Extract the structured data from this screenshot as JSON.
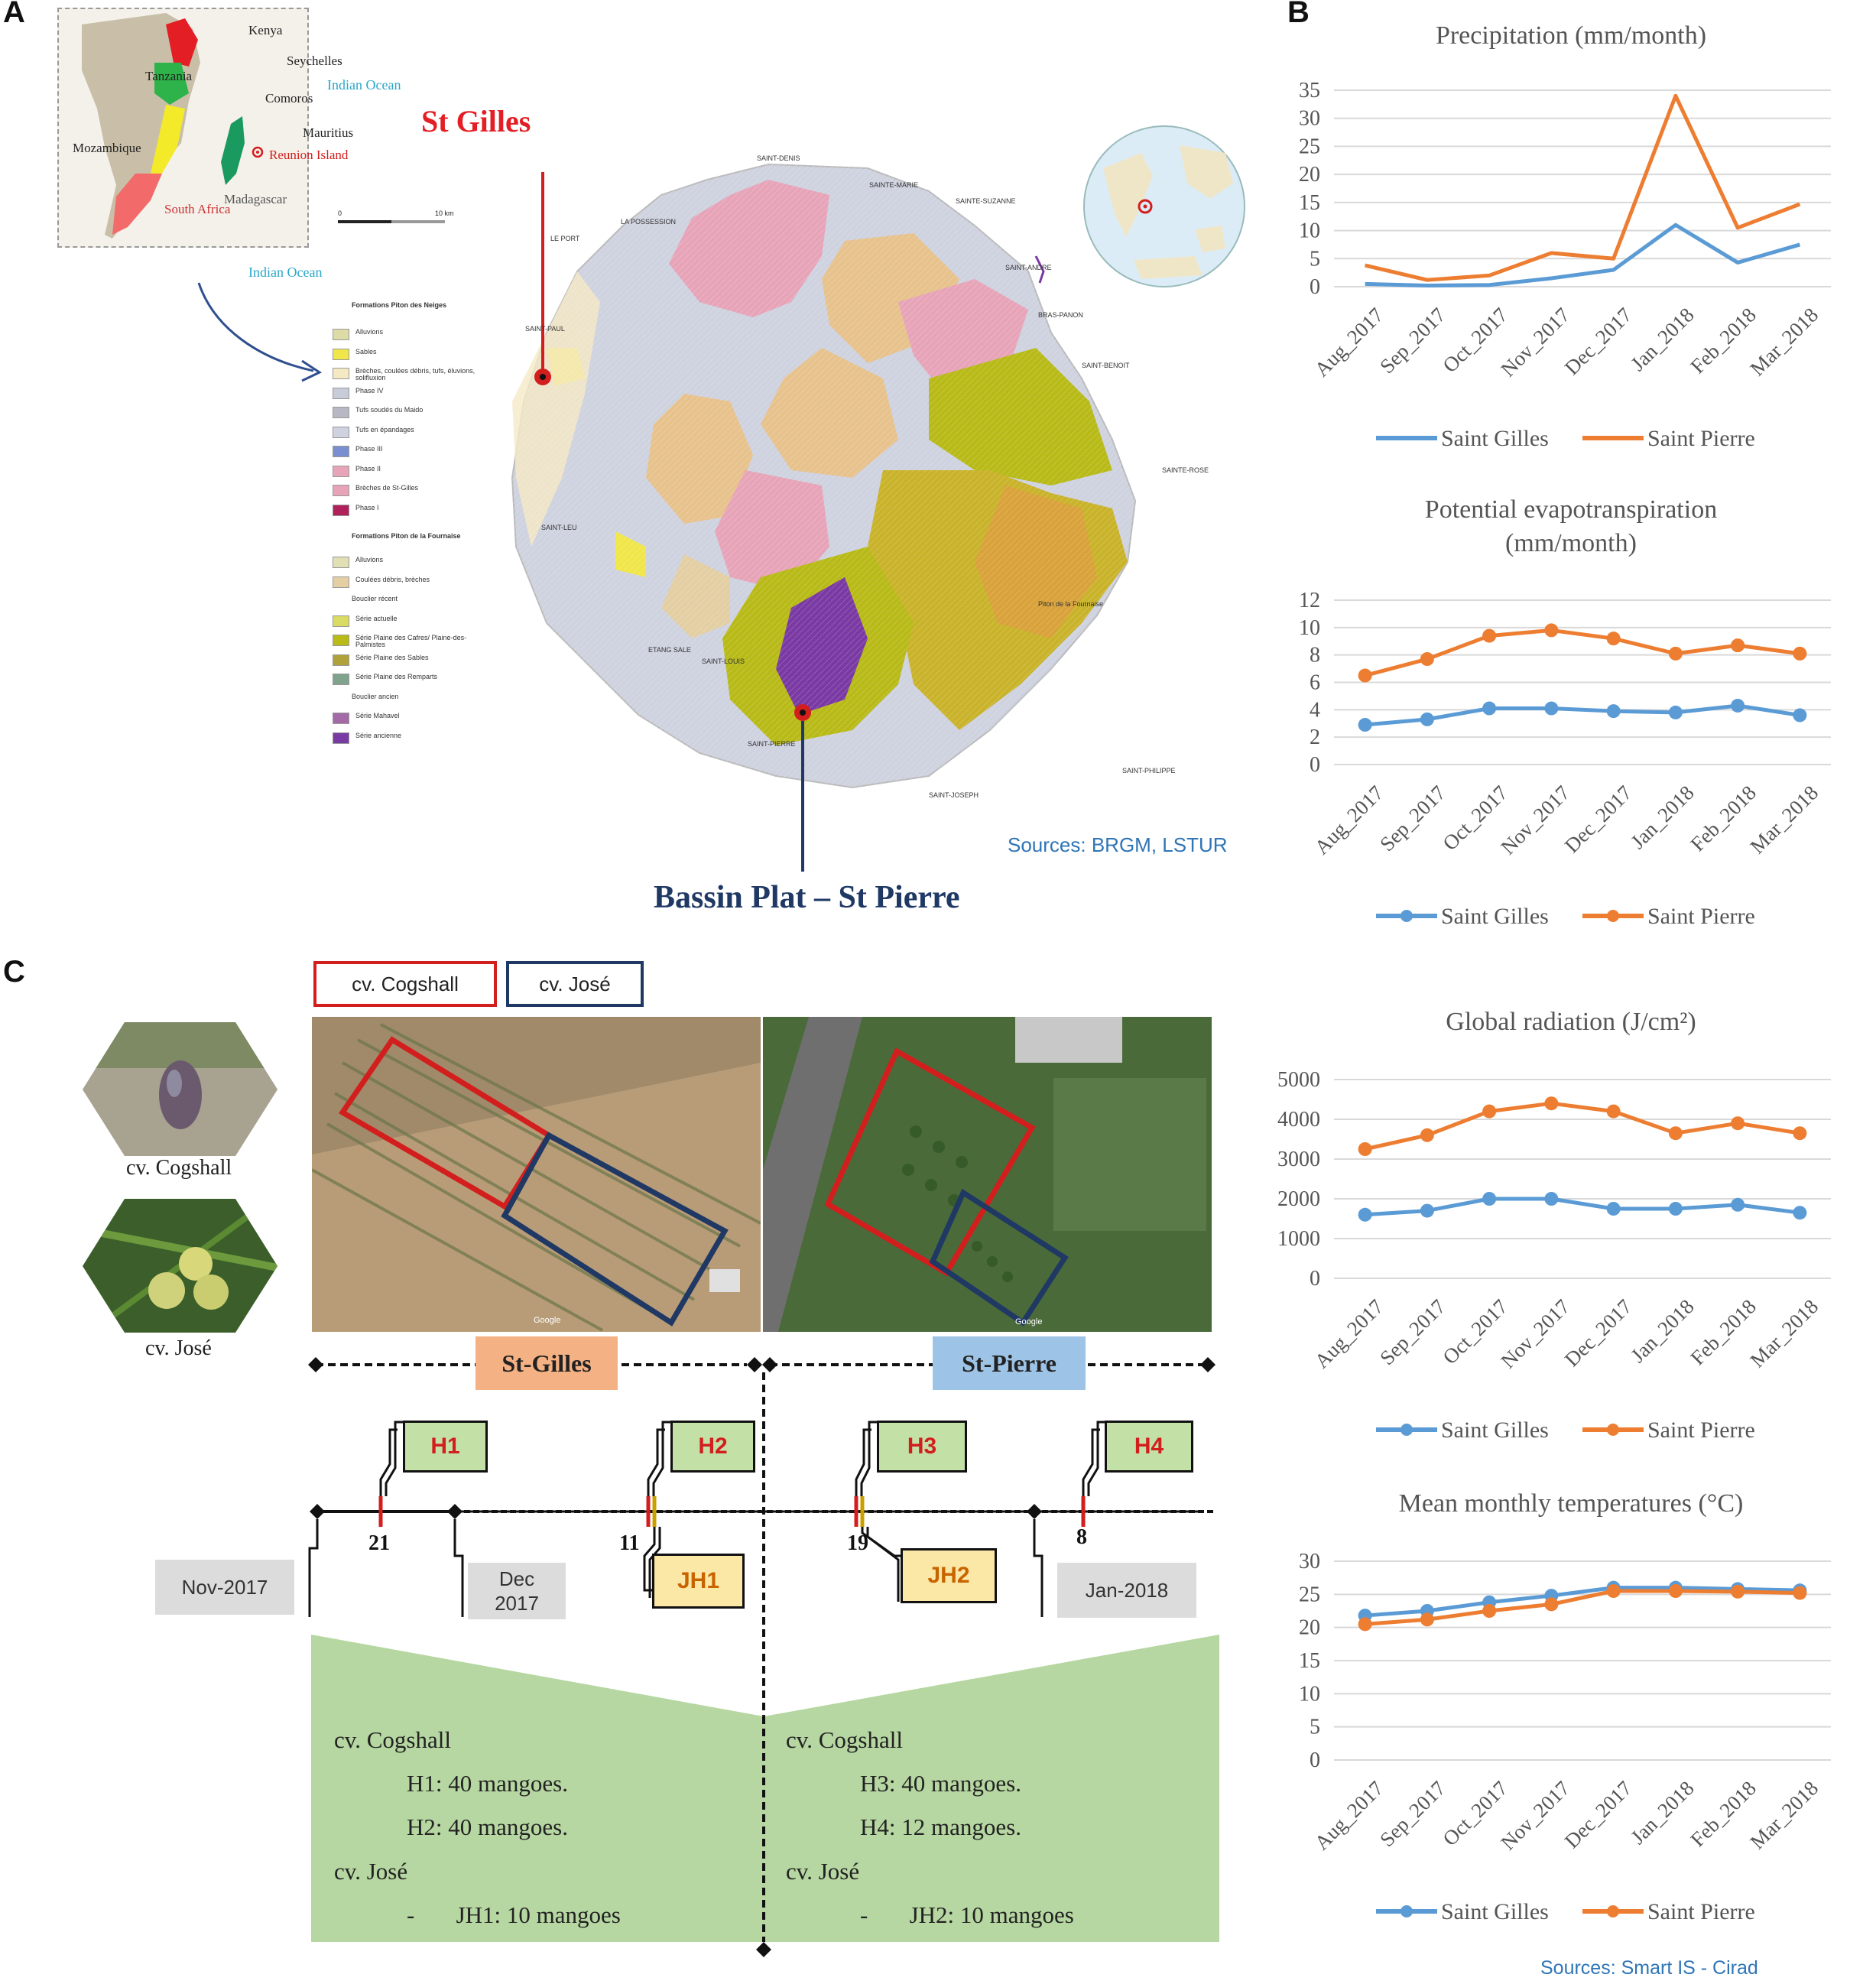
{
  "panels": {
    "a": "A",
    "b": "B",
    "c": "C"
  },
  "inset_map": {
    "labels": {
      "kenya": "Kenya",
      "seychelles": "Seychelles",
      "tanzania": "Tanzania",
      "comoros": "Comoros",
      "indian_ocean_1": "Indian Ocean",
      "mauritius": "Mauritius",
      "mozambique": "Mozambique",
      "reunion": "Reunion Island",
      "madagascar": "Madagascar",
      "south_africa": "South Africa",
      "indian_ocean_2": "Indian Ocean"
    },
    "scale": {
      "start": "0",
      "end": "10 km"
    }
  },
  "map": {
    "st_gilles": "St Gilles",
    "bassin_plat": "Bassin Plat – St Pierre",
    "sources": "Sources: BRGM, LSTUR",
    "colors": {
      "st_gilles": "#e31e24",
      "bassin_plat": "#1f3864",
      "sources": "#2e75b6"
    },
    "towns": {
      "saint_denis": "SAINT-DENIS",
      "sainte_marie": "SAINTE-MARIE",
      "sainte_suzanne": "SAINTE-SUZANNE",
      "la_possession": "LA POSSESSION",
      "le_port": "LE PORT",
      "saint_andre": "SAINT-ANDRE",
      "bras_panon": "BRAS-PANON",
      "saint_benoit": "SAINT-BENOIT",
      "saint_paul": "SAINT-PAUL",
      "sainte_rose": "SAINTE-ROSE",
      "saint_leu": "SAINT-LEU",
      "etang_sale": "ETANG SALE",
      "saint_louis": "SAINT-LOUIS",
      "saint_pierre": "SAINT-PIERRE",
      "saint_joseph": "SAINT-JOSEPH",
      "saint_philippe": "SAINT-PHILIPPE",
      "piton_fournaise": "Piton de la Fournaise"
    }
  },
  "geo_legend": {
    "title1": "Formations Piton des Neiges",
    "items1": [
      "Alluvions",
      "Sables",
      "Brèches, coulées débris, tufs, éluvions, solifluxion",
      "Phase IV",
      "Tufs soudés du Maido",
      "Tufs en épandages",
      "Phase III",
      "Phase II",
      "Brèches de St-Gilles",
      "Phase I"
    ],
    "colors1": [
      "#dedca6",
      "#f0e64a",
      "#f5e9c4",
      "#c8ccd8",
      "#b8b8c4",
      "#cfd2df",
      "#7a8fcf",
      "#e7a4b8",
      "#e7a4b8",
      "#b0205a"
    ],
    "title2": "Formations Piton de la Fournaise",
    "items2": [
      "Alluvions",
      "Coulées débris, brèches",
      "Bouclier récent",
      "Série actuelle",
      "Série Plaine des Cafres/ Plaine-des-Palmistes",
      "Série Plaine des Sables",
      "Série Plaine des Remparts",
      "Bouclier ancien",
      "Série Mahavel",
      "Série ancienne"
    ],
    "colors2": [
      "#e1dfb4",
      "#e3cfa3",
      "",
      "#d9db63",
      "#b8ba18",
      "#b0a23a",
      "#7fa38c",
      "",
      "#a46aa8",
      "#7a3aa3"
    ]
  },
  "chart_data": [
    {
      "type": "line",
      "title": "Precipitation  (mm/month)",
      "categories": [
        "Aug_2017",
        "Sep_2017",
        "Oct_2017",
        "Nov_2017",
        "Dec_2017",
        "Jan_2018",
        "Feb_2018",
        "Mar_2018"
      ],
      "ylim": [
        0,
        35
      ],
      "yticks": [
        0,
        5,
        10,
        15,
        20,
        25,
        30,
        35
      ],
      "markers": false,
      "grid": true,
      "legend": "bottom",
      "series": [
        {
          "name": "Saint Gilles",
          "color": "#5b9bd5",
          "values": [
            0.5,
            0.2,
            0.3,
            1.5,
            3,
            11,
            4.3,
            7.5
          ]
        },
        {
          "name": "Saint Pierre",
          "color": "#ed7d31",
          "values": [
            3.8,
            1.2,
            2,
            6,
            5,
            34,
            10.5,
            14.7
          ]
        }
      ]
    },
    {
      "type": "line",
      "title": "Potential evapotranspiration\n(mm/month)",
      "categories": [
        "Aug_2017",
        "Sep_2017",
        "Oct_2017",
        "Nov_2017",
        "Dec_2017",
        "Jan_2018",
        "Feb_2018",
        "Mar_2018"
      ],
      "ylim": [
        0,
        12
      ],
      "yticks": [
        0,
        2,
        4,
        6,
        8,
        10,
        12
      ],
      "markers": true,
      "grid": true,
      "legend": "bottom",
      "series": [
        {
          "name": "Saint Gilles",
          "color": "#5b9bd5",
          "values": [
            2.9,
            3.3,
            4.1,
            4.1,
            3.9,
            3.8,
            4.3,
            3.6
          ]
        },
        {
          "name": "Saint Pierre",
          "color": "#ed7d31",
          "values": [
            6.5,
            7.7,
            9.4,
            9.8,
            9.2,
            8.1,
            8.7,
            8.1
          ]
        }
      ]
    },
    {
      "type": "line",
      "title": "Global radiation (J/cm²)",
      "categories": [
        "Aug_2017",
        "Sep_2017",
        "Oct_2017",
        "Nov_2017",
        "Dec_2017",
        "Jan_2018",
        "Feb_2018",
        "Mar_2018"
      ],
      "ylim": [
        0,
        5000
      ],
      "yticks": [
        0,
        1000,
        2000,
        3000,
        4000,
        5000
      ],
      "markers": true,
      "grid": true,
      "legend": "bottom",
      "series": [
        {
          "name": "Saint Gilles",
          "color": "#5b9bd5",
          "values": [
            1600,
            1700,
            2000,
            2000,
            1750,
            1750,
            1850,
            1650
          ]
        },
        {
          "name": "Saint Pierre",
          "color": "#ed7d31",
          "values": [
            3250,
            3600,
            4200,
            4400,
            4200,
            3650,
            3900,
            3650
          ]
        }
      ]
    },
    {
      "type": "line",
      "title": "Mean monthly temperatures (°C)",
      "categories": [
        "Aug_2017",
        "Sep_2017",
        "Oct_2017",
        "Nov_2017",
        "Dec_2017",
        "Jan_2018",
        "Feb_2018",
        "Mar_2018"
      ],
      "ylim": [
        0,
        30
      ],
      "yticks": [
        0,
        5,
        10,
        15,
        20,
        25,
        30
      ],
      "markers": true,
      "grid": true,
      "legend": "bottom",
      "series": [
        {
          "name": "Saint Gilles",
          "color": "#5b9bd5",
          "values": [
            21.8,
            22.5,
            23.8,
            24.8,
            26,
            26,
            25.8,
            25.6
          ]
        },
        {
          "name": "Saint Pierre",
          "color": "#ed7d31",
          "values": [
            20.5,
            21.2,
            22.5,
            23.5,
            25.5,
            25.5,
            25.4,
            25.2
          ]
        }
      ]
    }
  ],
  "sources_b": "Sources: Smart IS - Cirad",
  "panel_c": {
    "cv_cogshall_box": "cv. Cogshall",
    "cv_jose_box": "cv. José",
    "photo_cogshall": "cv. Cogshall",
    "photo_jose": "cv. José",
    "site1": "St-Gilles",
    "site2": "St-Pierre",
    "google1": "Google",
    "google2": "Google",
    "harvests": [
      "H1",
      "H2",
      "H3",
      "H4"
    ],
    "jh": [
      "JH1",
      "JH2"
    ],
    "days": [
      "21",
      "11",
      "19",
      "8"
    ],
    "months": {
      "nov": "Nov-2017",
      "dec1": "Dec",
      "dec2": "2017",
      "jan": "Jan-2018"
    },
    "left_text": {
      "cv1": "cv. Cogshall",
      "h1": "H1: 40 mangoes.",
      "h2": "H2: 40 mangoes.",
      "cv2": "cv. José",
      "jh": "-       JH1: 10 mangoes"
    },
    "right_text": {
      "cv1": "cv. Cogshall",
      "h3": "H3: 40 mangoes.",
      "h4": "H4: 12 mangoes.",
      "cv2": "cv. José",
      "jh": "-       JH2: 10 mangoes"
    },
    "colors": {
      "cogshall": "#d31e1e",
      "jose": "#1f3864",
      "st_gilles_bg": "#f4b183",
      "st_pierre_bg": "#9dc3e6",
      "green": "#b6d7a1"
    }
  }
}
